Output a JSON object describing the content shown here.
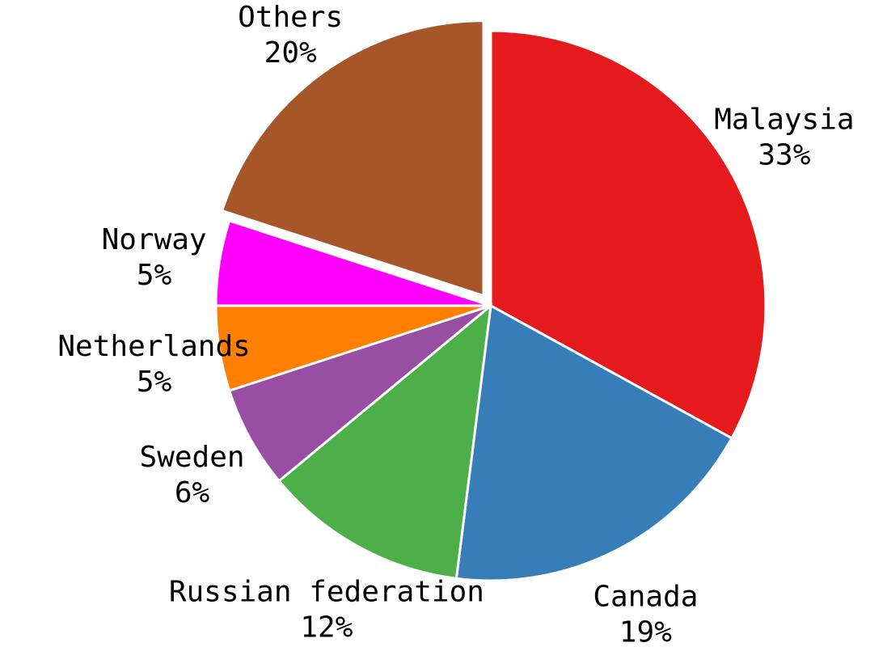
{
  "chart_data": {
    "type": "pie",
    "categories": [
      "Malaysia",
      "Canada",
      "Russian federation",
      "Sweden",
      "Netherlands",
      "Norway",
      "Others"
    ],
    "values": [
      33,
      19,
      12,
      6,
      5,
      5,
      20
    ],
    "value_labels": [
      "33%",
      "19%",
      "12%",
      "6%",
      "5%",
      "5%",
      "20%"
    ],
    "colors": [
      "#e41a1c",
      "#377eb8",
      "#4daf4a",
      "#984ea3",
      "#ff7f00",
      "#ff00ff",
      "#a65628"
    ],
    "explode": [
      0,
      0,
      0,
      0,
      0,
      0,
      0.045
    ]
  }
}
